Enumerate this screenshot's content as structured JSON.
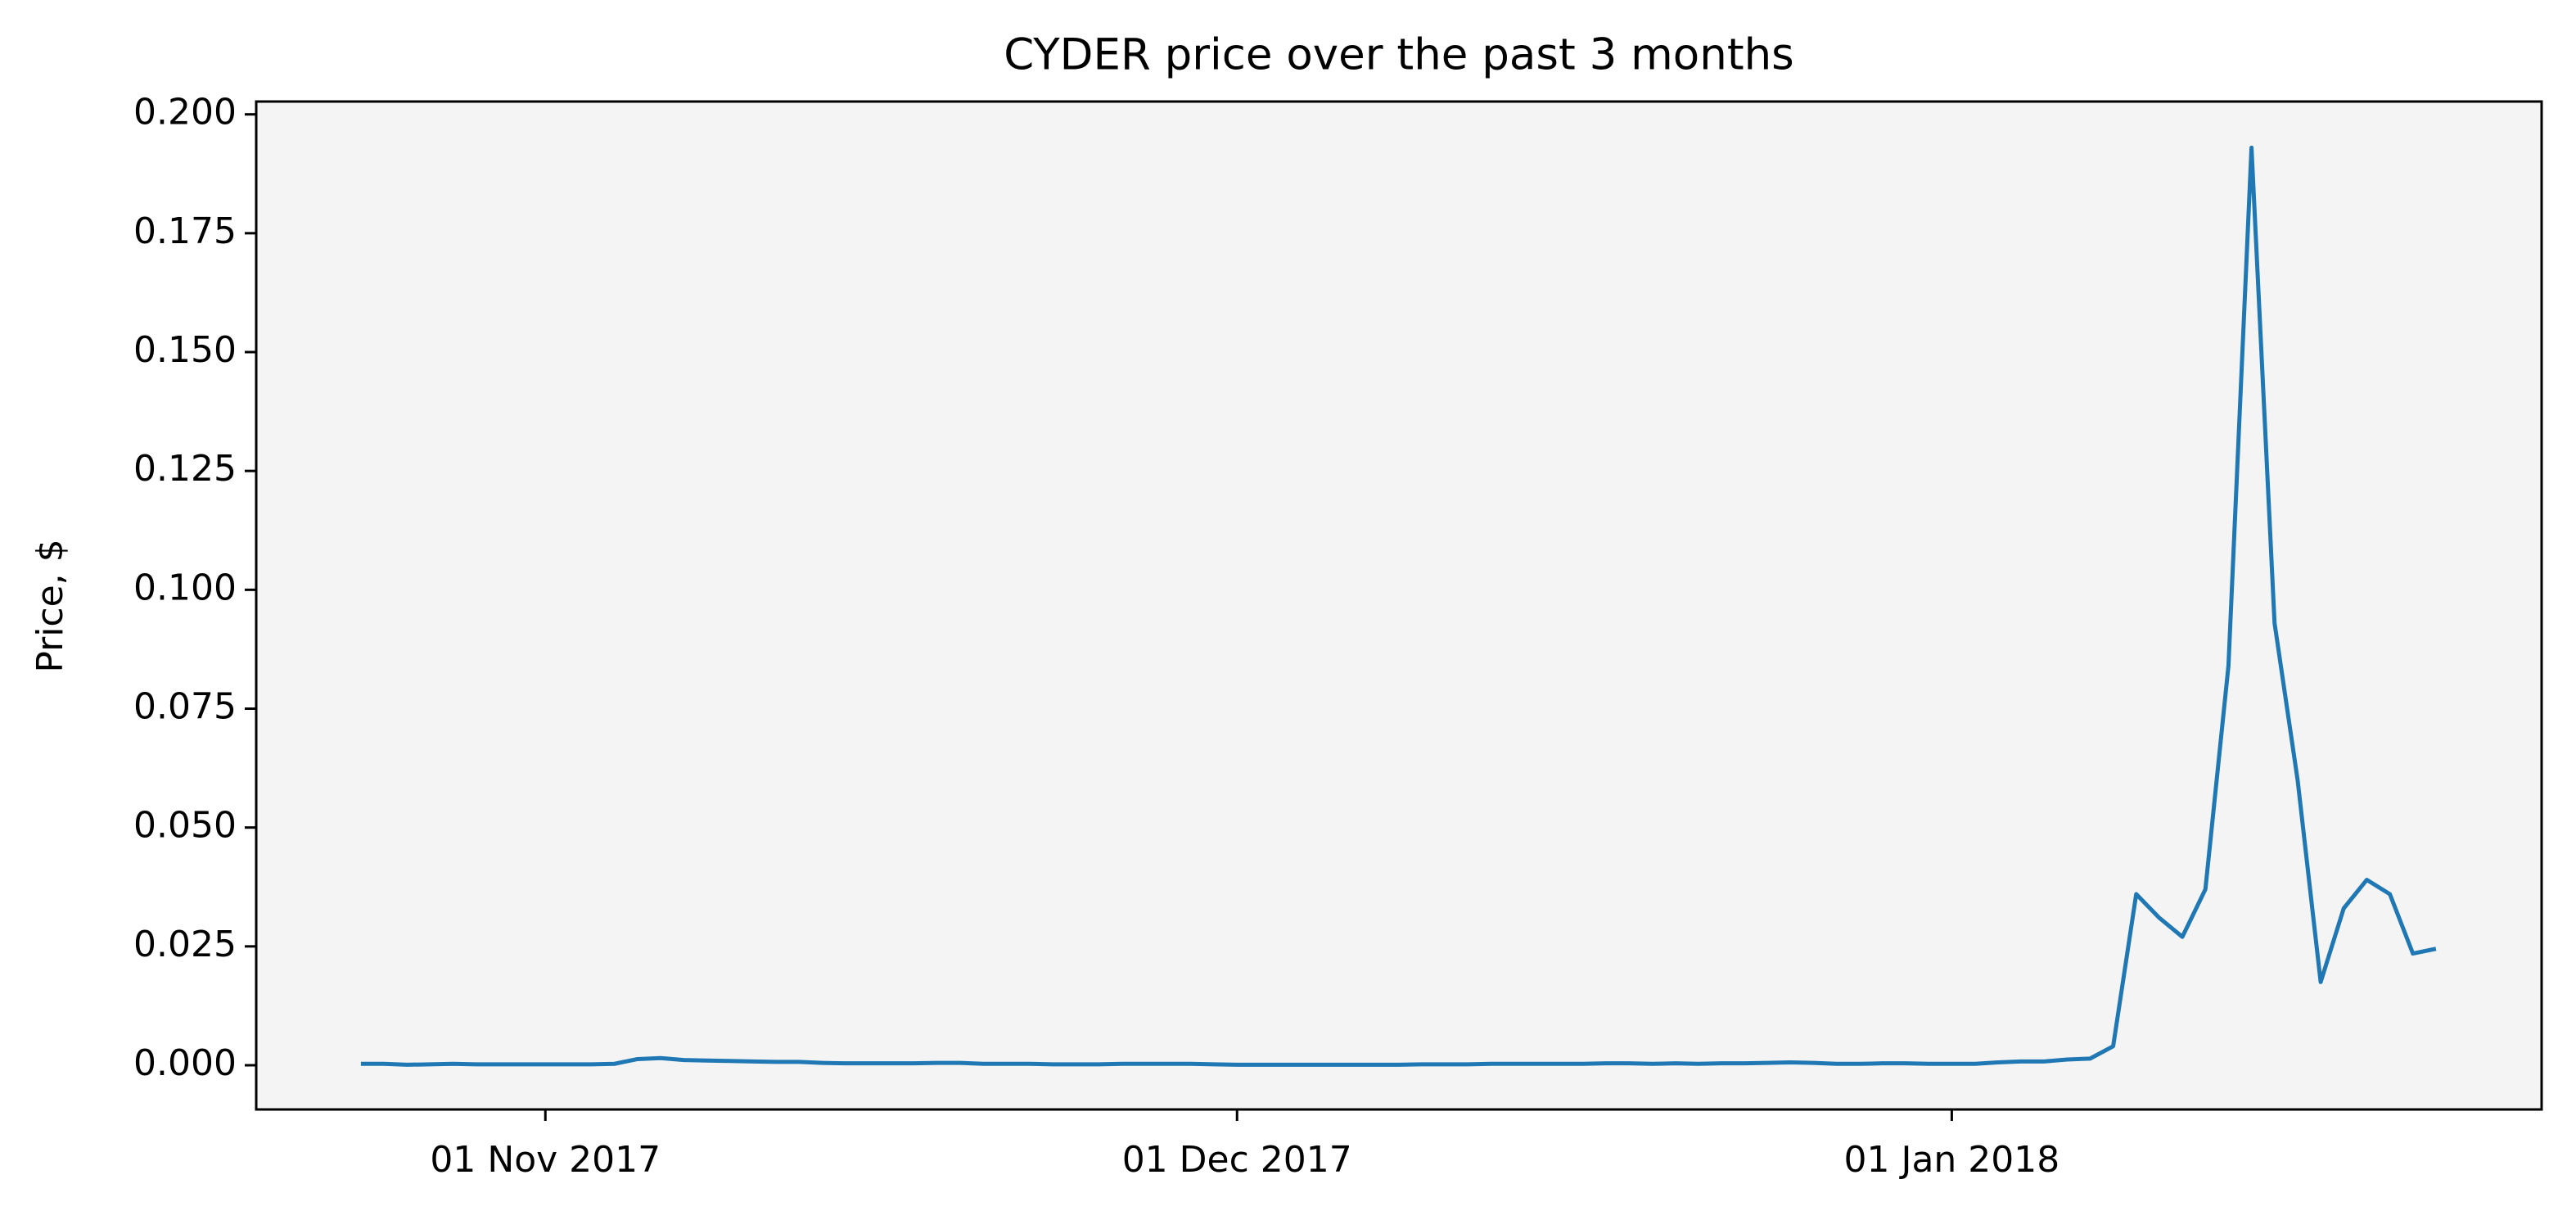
{
  "chart_data": {
    "type": "line",
    "title": "CYDER price over the past 3 months",
    "ylabel": "Price, $",
    "color": "#1f77b4",
    "background": "#f4f4f4",
    "x": [
      "2017-10-24",
      "2017-10-25",
      "2017-10-26",
      "2017-10-27",
      "2017-10-28",
      "2017-10-29",
      "2017-10-30",
      "2017-10-31",
      "2017-11-01",
      "2017-11-02",
      "2017-11-03",
      "2017-11-04",
      "2017-11-05",
      "2017-11-06",
      "2017-11-07",
      "2017-11-08",
      "2017-11-09",
      "2017-11-10",
      "2017-11-11",
      "2017-11-12",
      "2017-11-13",
      "2017-11-14",
      "2017-11-15",
      "2017-11-16",
      "2017-11-17",
      "2017-11-18",
      "2017-11-19",
      "2017-11-20",
      "2017-11-21",
      "2017-11-22",
      "2017-11-23",
      "2017-11-24",
      "2017-11-25",
      "2017-11-26",
      "2017-11-27",
      "2017-11-28",
      "2017-11-29",
      "2017-11-30",
      "2017-12-01",
      "2017-12-02",
      "2017-12-03",
      "2017-12-04",
      "2017-12-05",
      "2017-12-06",
      "2017-12-07",
      "2017-12-08",
      "2017-12-09",
      "2017-12-10",
      "2017-12-11",
      "2017-12-12",
      "2017-12-13",
      "2017-12-14",
      "2017-12-15",
      "2017-12-16",
      "2017-12-17",
      "2017-12-18",
      "2017-12-19",
      "2017-12-20",
      "2017-12-21",
      "2017-12-22",
      "2017-12-23",
      "2017-12-24",
      "2017-12-25",
      "2017-12-26",
      "2017-12-27",
      "2017-12-28",
      "2017-12-29",
      "2017-12-30",
      "2017-12-31",
      "2018-01-01",
      "2018-01-02",
      "2018-01-03",
      "2018-01-04",
      "2018-01-05",
      "2018-01-06",
      "2018-01-07",
      "2018-01-08",
      "2018-01-09",
      "2018-01-10",
      "2018-01-11",
      "2018-01-12",
      "2018-01-13",
      "2018-01-14",
      "2018-01-15",
      "2018-01-16",
      "2018-01-17",
      "2018-01-18",
      "2018-01-19",
      "2018-01-20",
      "2018-01-21",
      "2018-01-22"
    ],
    "values": [
      0.0003,
      0.0003,
      0.0001,
      0.0002,
      0.0003,
      0.0002,
      0.0002,
      0.0002,
      0.0002,
      0.0002,
      0.0002,
      0.0003,
      0.0013,
      0.0015,
      0.0011,
      0.001,
      0.0009,
      0.0008,
      0.0007,
      0.0007,
      0.0005,
      0.0004,
      0.0004,
      0.0004,
      0.0004,
      0.0005,
      0.0005,
      0.0003,
      0.0003,
      0.0003,
      0.0002,
      0.0002,
      0.0002,
      0.0003,
      0.0003,
      0.0003,
      0.0003,
      0.0002,
      0.0001,
      0.0001,
      0.0001,
      0.0001,
      0.0001,
      0.0001,
      0.0001,
      0.0001,
      0.0002,
      0.0002,
      0.0002,
      0.0003,
      0.0003,
      0.0003,
      0.0003,
      0.0003,
      0.0004,
      0.0004,
      0.0003,
      0.0004,
      0.0003,
      0.0004,
      0.0004,
      0.0005,
      0.0006,
      0.0005,
      0.0003,
      0.0003,
      0.0004,
      0.0004,
      0.0003,
      0.0003,
      0.0003,
      0.0006,
      0.0008,
      0.0008,
      0.0012,
      0.0014,
      0.004,
      0.036,
      0.031,
      0.027,
      0.037,
      0.084,
      0.193,
      0.093,
      0.06,
      0.0175,
      0.033,
      0.039,
      0.036,
      0.0235,
      0.0245
    ],
    "xlim": [
      "2017-10-19T11:00:00Z",
      "2018-01-26T14:00:00Z"
    ],
    "xticks": [
      {
        "value": "2017-11-01",
        "label": "01 Nov 2017"
      },
      {
        "value": "2017-12-01",
        "label": "01 Dec 2017"
      },
      {
        "value": "2018-01-01",
        "label": "01 Jan 2018"
      }
    ],
    "ylim": [
      -0.0093,
      0.2027
    ],
    "yticks": [
      {
        "value": 0,
        "label": "0.000"
      },
      {
        "value": 0.025,
        "label": "0.025"
      },
      {
        "value": 0.05,
        "label": "0.050"
      },
      {
        "value": 0.075,
        "label": "0.075"
      },
      {
        "value": 0.1,
        "label": "0.100"
      },
      {
        "value": 0.125,
        "label": "0.125"
      },
      {
        "value": 0.15,
        "label": "0.150"
      },
      {
        "value": 0.175,
        "label": "0.175"
      },
      {
        "value": 0.2,
        "label": "0.200"
      }
    ]
  }
}
